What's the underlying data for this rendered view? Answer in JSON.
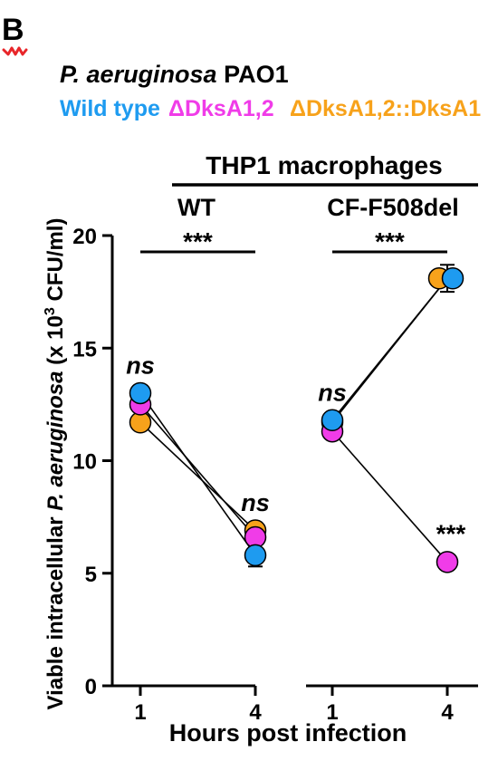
{
  "panel_label": "B",
  "title": {
    "italic_part": "P. aeruginosa",
    "plain_part": " PAO1"
  },
  "legend": [
    {
      "label": "Wild type",
      "color": "#1E9BF0"
    },
    {
      "label": "ΔDksA1,2",
      "color": "#F03CE8"
    },
    {
      "label": "ΔDksA1,2::DksA1",
      "color": "#F7A21B"
    }
  ],
  "header": "THP1 macrophages",
  "ylabel": {
    "part1": "Viable intracellular ",
    "italic": "P. aeruginosa",
    "part2": " (x 10",
    "sup": "3",
    "part3": " CFU/ml)"
  },
  "xlabel": "Hours post infection",
  "chart_data": {
    "type": "scatter",
    "ylim": [
      0,
      20
    ],
    "yticks": [
      0,
      5,
      10,
      15,
      20
    ],
    "ytick_labels": [
      "0",
      "5",
      "10",
      "15",
      "20"
    ],
    "grid": false,
    "legend_position": "top",
    "groups": [
      {
        "label": "WT",
        "x": [
          1,
          4
        ],
        "xtick_labels": [
          "1",
          "4"
        ],
        "series": [
          {
            "name": "Wild type",
            "color": "#1E9BF0",
            "values": [
              13.0,
              5.8
            ],
            "errors": [
              0.3,
              0.5
            ]
          },
          {
            "name": "ΔDksA1,2",
            "color": "#F03CE8",
            "values": [
              12.5,
              6.6
            ],
            "errors": [
              0.3,
              0.3
            ]
          },
          {
            "name": "ΔDksA1,2::DksA1",
            "color": "#F7A21B",
            "values": [
              11.7,
              6.9
            ],
            "errors": [
              0.3,
              0.3
            ]
          }
        ],
        "bracket_sig": "***",
        "point_annotations": [
          "ns",
          "ns"
        ]
      },
      {
        "label": "CF-F508del",
        "x": [
          1,
          4
        ],
        "xtick_labels": [
          "1",
          "4"
        ],
        "series": [
          {
            "name": "Wild type",
            "color": "#1E9BF0",
            "values": [
              11.8,
              18.1
            ],
            "errors": [
              0.3,
              0.6
            ]
          },
          {
            "name": "ΔDksA1,2",
            "color": "#F03CE8",
            "values": [
              11.3,
              5.5
            ],
            "errors": [
              0.3,
              0.3
            ]
          },
          {
            "name": "ΔDksA1,2::DksA1",
            "color": "#F7A21B",
            "values": [
              11.7,
              18.1
            ],
            "errors": [
              0.3,
              0.3
            ]
          }
        ],
        "bracket_sig": "***",
        "point_annotations": [
          "ns",
          "***"
        ]
      }
    ]
  }
}
